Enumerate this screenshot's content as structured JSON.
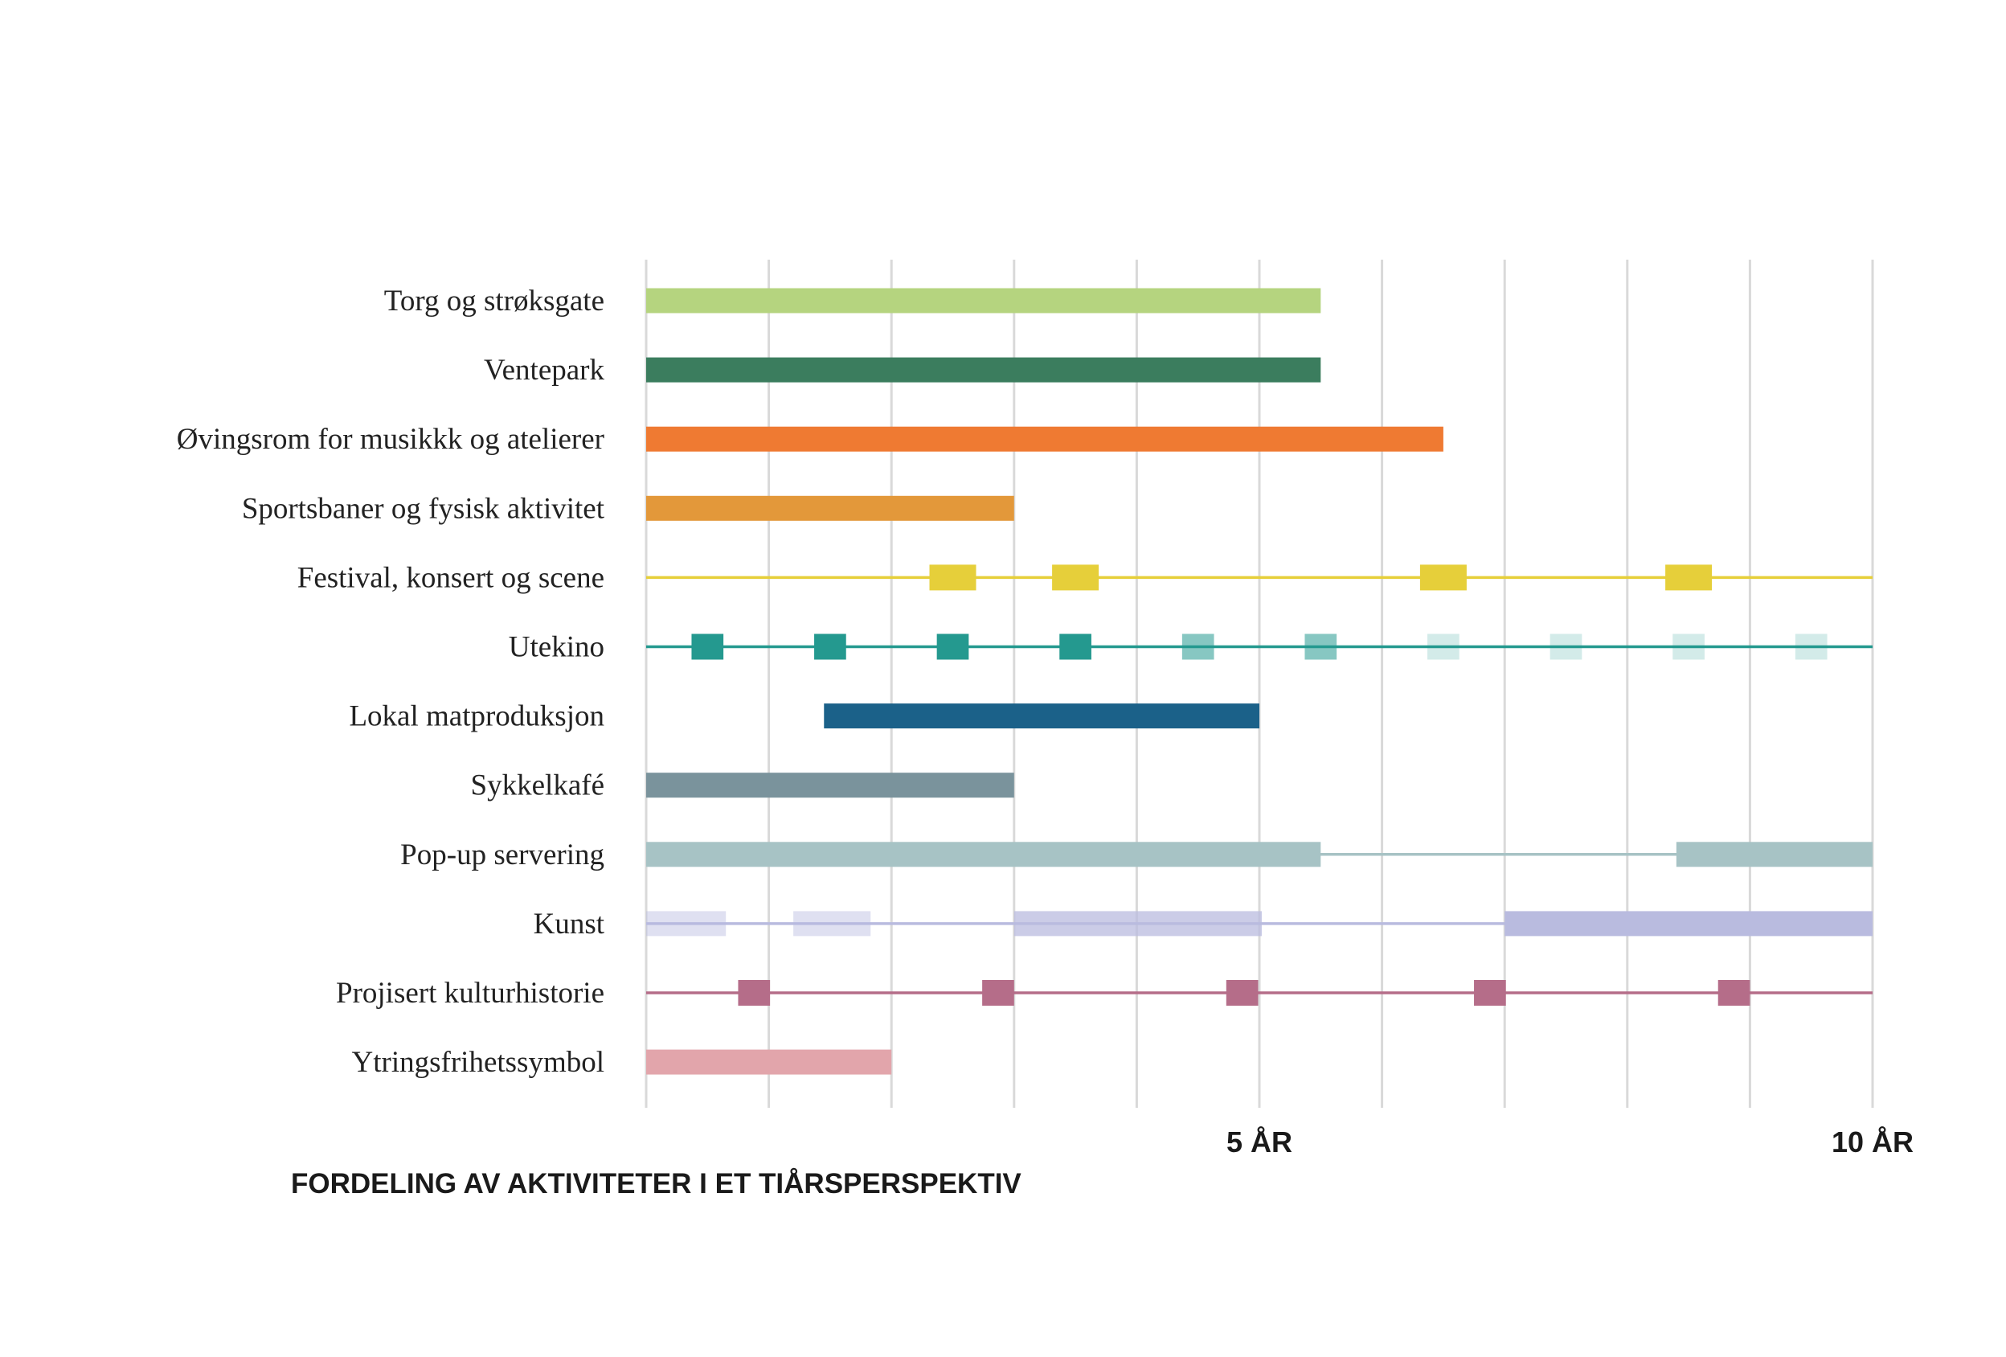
{
  "chart_data": {
    "type": "gantt",
    "title": "FORDELING AV AKTIVITETER I ET TIÅRSPERSPEKTIV",
    "xlim": [
      0,
      10
    ],
    "grid": true,
    "ticks": [
      {
        "value": 5,
        "label": "5 ÅR"
      },
      {
        "value": 10,
        "label": "10 ÅR"
      }
    ],
    "rows": [
      {
        "label": "Torg og strøksgate",
        "color": "#b5d47f",
        "bars": [
          {
            "start": 0,
            "end": 5.5
          }
        ]
      },
      {
        "label": "Ventepark",
        "color": "#3b7d5e",
        "bars": [
          {
            "start": 0,
            "end": 5.5
          }
        ]
      },
      {
        "label": "Øvingsrom for musikkk og atelierer",
        "color": "#ef7a32",
        "bars": [
          {
            "start": 0,
            "end": 6.5
          }
        ]
      },
      {
        "label": "Sportsbaner og fysisk aktivitet",
        "color": "#e3983a",
        "bars": [
          {
            "start": 0,
            "end": 3.0
          }
        ]
      },
      {
        "label": "Festival, konsert og scene",
        "color": "#e6cf3a",
        "line": true,
        "marker_width": 0.38,
        "events": [
          {
            "at": 2.5
          },
          {
            "at": 3.5
          },
          {
            "at": 6.5
          },
          {
            "at": 8.5
          }
        ]
      },
      {
        "label": "Utekino",
        "color": "#24998f",
        "line": true,
        "marker_width": 0.26,
        "events": [
          {
            "at": 0.5,
            "opacity": 1.0
          },
          {
            "at": 1.5,
            "opacity": 1.0
          },
          {
            "at": 2.5,
            "opacity": 1.0
          },
          {
            "at": 3.5,
            "opacity": 1.0
          },
          {
            "at": 4.5,
            "opacity": 0.55
          },
          {
            "at": 5.5,
            "opacity": 0.55
          },
          {
            "at": 6.5,
            "opacity": 0.2
          },
          {
            "at": 7.5,
            "opacity": 0.2
          },
          {
            "at": 8.5,
            "opacity": 0.2
          },
          {
            "at": 9.5,
            "opacity": 0.2
          }
        ]
      },
      {
        "label": "Lokal matproduksjon",
        "color": "#1b6189",
        "bars": [
          {
            "start": 1.45,
            "end": 5.0
          }
        ]
      },
      {
        "label": "Sykkelkafé",
        "color": "#7a939c",
        "bars": [
          {
            "start": 0,
            "end": 3.0
          }
        ]
      },
      {
        "label": "Pop-up servering",
        "color": "#a7c3c5",
        "line": true,
        "bars": [
          {
            "start": 0,
            "end": 5.5
          },
          {
            "start": 8.4,
            "end": 10.0
          }
        ]
      },
      {
        "label": "Kunst",
        "color": "#b9bbdf",
        "line": true,
        "bars": [
          {
            "start": 0,
            "end": 0.65,
            "opacity": 0.45
          },
          {
            "start": 1.2,
            "end": 1.83,
            "opacity": 0.45
          },
          {
            "start": 3.0,
            "end": 5.02,
            "opacity": 0.75
          },
          {
            "start": 7.0,
            "end": 10.0,
            "opacity": 1.0
          }
        ]
      },
      {
        "label": "Projisert kulturhistorie",
        "color": "#b56d89",
        "line": true,
        "marker_width": 0.26,
        "events": [
          {
            "at": 0.88
          },
          {
            "at": 2.87
          },
          {
            "at": 4.86
          },
          {
            "at": 6.88
          },
          {
            "at": 8.87
          }
        ]
      },
      {
        "label": "Ytringsfrihetssymbol",
        "color": "#e2a5ab",
        "bars": [
          {
            "start": 0,
            "end": 2.0
          }
        ]
      }
    ]
  }
}
